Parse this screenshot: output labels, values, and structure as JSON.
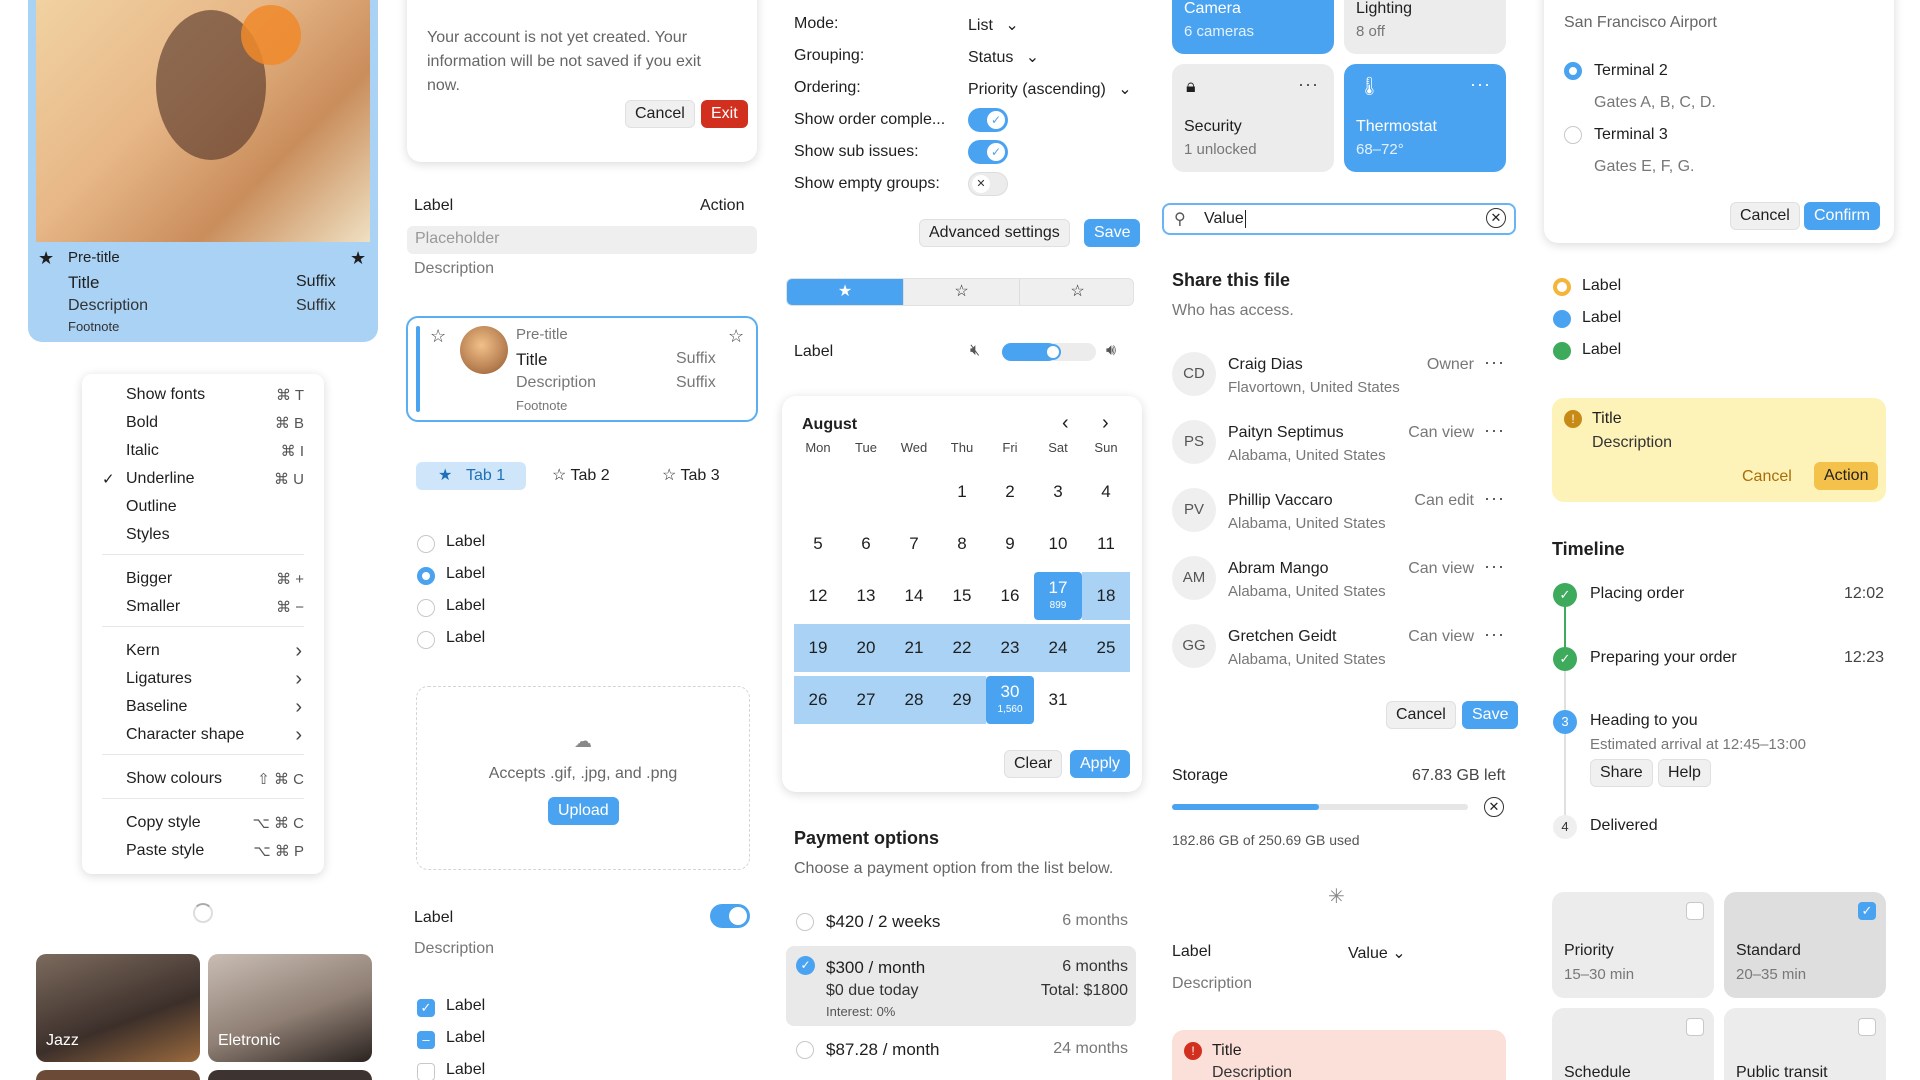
{
  "profile_card": {
    "pretitle": "Pre-title",
    "title": "Title",
    "suffix1": "Suffix",
    "description": "Description",
    "suffix2": "Suffix",
    "footnote": "Footnote"
  },
  "format_menu": {
    "items": [
      {
        "label": "Show fonts",
        "key": "⌘ T"
      },
      {
        "label": "Bold",
        "key": "⌘ B"
      },
      {
        "label": "Italic",
        "key": "⌘ I"
      },
      {
        "label": "Underline",
        "key": "⌘ U"
      },
      {
        "label": "Outline",
        "key": ""
      },
      {
        "label": "Styles",
        "key": ""
      },
      {
        "label": "Bigger",
        "key": "⌘ +"
      },
      {
        "label": "Smaller",
        "key": "⌘ −"
      },
      {
        "label": "Kern",
        "key": ""
      },
      {
        "label": "Ligatures",
        "key": ""
      },
      {
        "label": "Baseline",
        "key": ""
      },
      {
        "label": "Character shape",
        "key": ""
      },
      {
        "label": "Show colours",
        "key": "⇧ ⌘ C"
      },
      {
        "label": "Copy style",
        "key": "⌥ ⌘ C"
      },
      {
        "label": "Paste style",
        "key": "⌥ ⌘ P"
      }
    ],
    "checked": "Underline"
  },
  "genres": [
    "Jazz",
    "Eletronic"
  ],
  "exit_dialog": {
    "message": "Your account is not yet created. Your information will be not saved if you exit now.",
    "cancel": "Cancel",
    "exit": "Exit"
  },
  "field": {
    "label": "Label",
    "action": "Action",
    "placeholder": "Placeholder",
    "description": "Description"
  },
  "list_card": {
    "pretitle": "Pre-title",
    "title": "Title",
    "suffix1": "Suffix",
    "description": "Description",
    "suffix2": "Suffix",
    "footnote": "Footnote"
  },
  "tabs": [
    "Tab 1",
    "Tab 2",
    "Tab 3"
  ],
  "radios": [
    "Label",
    "Label",
    "Label",
    "Label"
  ],
  "upload": {
    "text": "Accepts .gif, .jpg, and .png",
    "button": "Upload"
  },
  "toggle_field": {
    "label": "Label",
    "description": "Description"
  },
  "checkboxes": [
    "Label",
    "Label",
    "Label"
  ],
  "view_settings": {
    "rows": [
      {
        "label": "Mode:",
        "value": "List"
      },
      {
        "label": "Grouping:",
        "value": "Status"
      },
      {
        "label": "Ordering:",
        "value": "Priority (ascending)"
      }
    ],
    "toggles": [
      {
        "label": "Show order comple...",
        "on": true
      },
      {
        "label": "Show sub issues:",
        "on": true
      },
      {
        "label": "Show empty groups:",
        "on": false
      }
    ],
    "advanced": "Advanced settings",
    "save": "Save"
  },
  "volume": {
    "label": "Label",
    "level": 0.5
  },
  "calendar": {
    "month": "August",
    "weekdays": [
      "Mon",
      "Tue",
      "Wed",
      "Thu",
      "Fri",
      "Sat",
      "Sun"
    ],
    "weeks": [
      [
        "",
        "",
        "",
        "1",
        "2",
        "3",
        "4"
      ],
      [
        "5",
        "6",
        "7",
        "8",
        "9",
        "10",
        "11"
      ],
      [
        "12",
        "13",
        "14",
        "15",
        "16",
        "17",
        "18"
      ],
      [
        "19",
        "20",
        "21",
        "22",
        "23",
        "24",
        "25"
      ],
      [
        "26",
        "27",
        "28",
        "29",
        "30",
        "31",
        ""
      ]
    ],
    "range_start": "17",
    "range_end": "30",
    "start_sub": "899",
    "end_sub": "1,560",
    "clear": "Clear",
    "apply": "Apply"
  },
  "payment": {
    "title": "Payment options",
    "subtitle": "Choose a payment option from the list below.",
    "options": [
      {
        "price": "$420 / 2 weeks",
        "term": "6 months"
      },
      {
        "price": "$300 / month",
        "term": "6 months",
        "line2": "$0 due today",
        "total": "Total: $1800",
        "interest": "Interest: 0%"
      },
      {
        "price": "$87.28 / month",
        "term": "24 months"
      }
    ]
  },
  "home_tiles": [
    {
      "title": "Camera",
      "sub": "6 cameras"
    },
    {
      "title": "Lighting",
      "sub": "8 off"
    },
    {
      "title": "Security",
      "sub": "1 unlocked"
    },
    {
      "title": "Thermostat",
      "sub": "68–72°"
    }
  ],
  "search": {
    "value": "Value"
  },
  "share": {
    "title": "Share this file",
    "subtitle": "Who has access.",
    "people": [
      {
        "initials": "CD",
        "name": "Craig Dias",
        "loc": "Flavortown, United States",
        "role": "Owner"
      },
      {
        "initials": "PS",
        "name": "Paityn Septimus",
        "loc": "Alabama, United States",
        "role": "Can view"
      },
      {
        "initials": "PV",
        "name": "Phillip Vaccaro",
        "loc": "Alabama, United States",
        "role": "Can edit"
      },
      {
        "initials": "AM",
        "name": "Abram Mango",
        "loc": "Alabama, United States",
        "role": "Can view"
      },
      {
        "initials": "GG",
        "name": "Gretchen Geidt",
        "loc": "Alabama, United States",
        "role": "Can view"
      }
    ],
    "cancel": "Cancel",
    "save": "Save"
  },
  "storage": {
    "label": "Storage",
    "left": "67.83 GB left",
    "used": "182.86 GB of 250.69 GB used",
    "fraction": 0.73
  },
  "select_field": {
    "label": "Label",
    "value": "Value",
    "description": "Description"
  },
  "alert_red": {
    "title": "Title",
    "description": "Description"
  },
  "terminal": {
    "location": "San Francisco Airport",
    "options": [
      {
        "name": "Terminal 2",
        "gates": "Gates A, B, C, D."
      },
      {
        "name": "Terminal 3",
        "gates": "Gates E, F, G."
      }
    ],
    "cancel": "Cancel",
    "confirm": "Confirm"
  },
  "status_labels": [
    "Label",
    "Label",
    "Label"
  ],
  "status_colors": [
    "#f4b63a",
    "#4aa3f0",
    "#3daa5c"
  ],
  "alert_amber": {
    "title": "Title",
    "description": "Description",
    "cancel": "Cancel",
    "action": "Action"
  },
  "timeline": {
    "title": "Timeline",
    "steps": [
      {
        "label": "Placing order",
        "time": "12:02",
        "marker": ""
      },
      {
        "label": "Preparing your order",
        "time": "12:23",
        "marker": ""
      },
      {
        "label": "Heading to you",
        "sub": "Estimated arrival at 12:45–13:00",
        "marker": "3"
      },
      {
        "label": "Delivered",
        "marker": "4"
      }
    ],
    "share": "Share",
    "help": "Help"
  },
  "delivery": [
    {
      "title": "Priority",
      "sub": "15–30 min",
      "checked": false
    },
    {
      "title": "Standard",
      "sub": "20–35 min",
      "checked": true
    },
    {
      "title": "Schedule",
      "sub": "",
      "checked": false
    },
    {
      "title": "Public transit",
      "sub": "",
      "checked": false
    }
  ]
}
